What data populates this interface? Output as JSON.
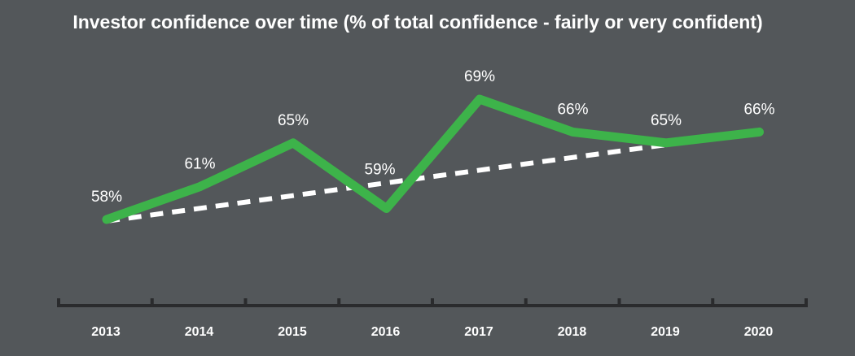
{
  "chart_data": {
    "type": "line",
    "title": "Investor confidence over time (% of total confidence - fairly or very confident)",
    "categories": [
      "2013",
      "2014",
      "2015",
      "2016",
      "2017",
      "2018",
      "2019",
      "2020"
    ],
    "series": [
      {
        "values": [
          58,
          61,
          65,
          59,
          69,
          66,
          65,
          66
        ],
        "color": "#3db34a"
      }
    ],
    "data_labels": [
      "58%",
      "61%",
      "65%",
      "59%",
      "69%",
      "66%",
      "65%",
      "66%"
    ],
    "trendline": {
      "style": "dashed",
      "color": "#ffffff"
    },
    "ylim": [
      50,
      72
    ],
    "grid": false,
    "background": "#53575a",
    "axis_color": "#2a2b2d"
  }
}
